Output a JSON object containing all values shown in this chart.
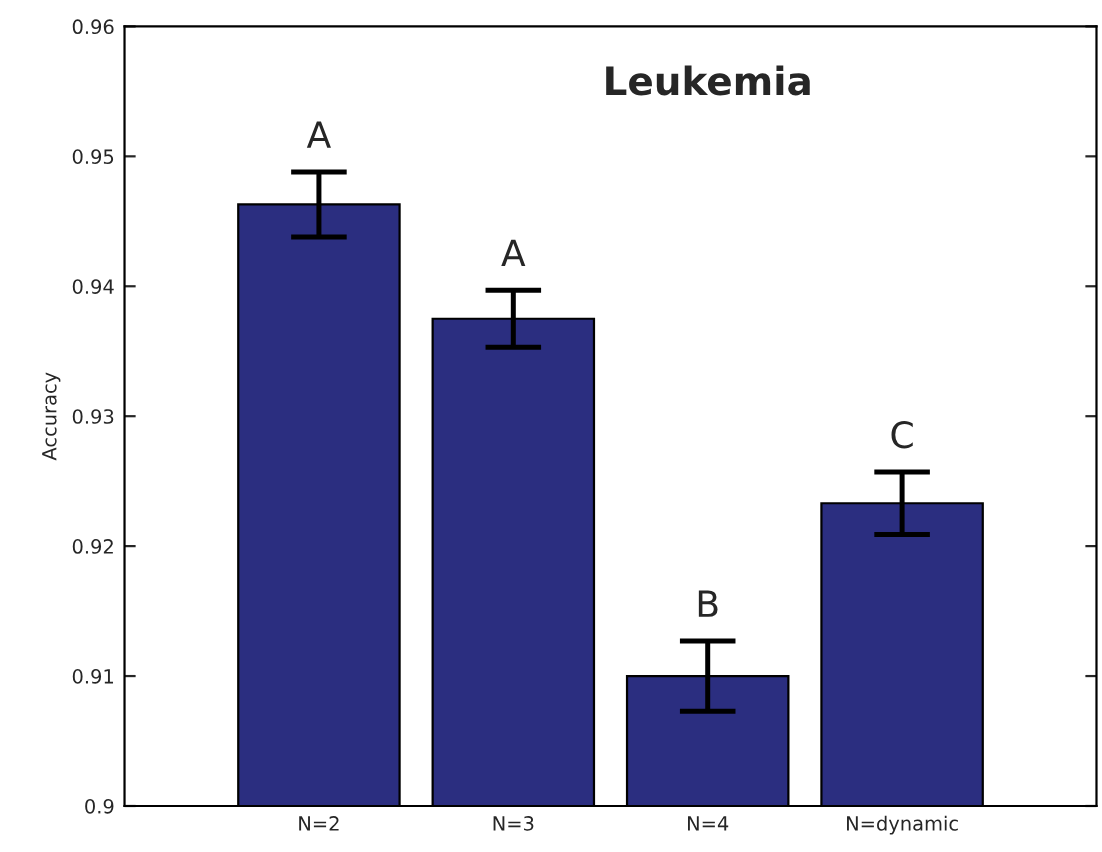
{
  "chart_data": {
    "type": "bar",
    "title": "Leukemia",
    "ylabel": "Accuracy",
    "categories": [
      "N=2",
      "N=3",
      "N=4",
      "N=dynamic"
    ],
    "values": [
      0.9463,
      0.9375,
      0.91,
      0.9233
    ],
    "errors": [
      0.0025,
      0.0022,
      0.0027,
      0.0024
    ],
    "color": "#2b2e80",
    "ylim": [
      0.9,
      0.96
    ],
    "yticks": [
      0.9,
      0.91,
      0.92,
      0.93,
      0.94,
      0.95,
      0.96
    ],
    "annotations": [
      "A",
      "A",
      "B",
      "C"
    ],
    "grid": false,
    "legend": false
  }
}
